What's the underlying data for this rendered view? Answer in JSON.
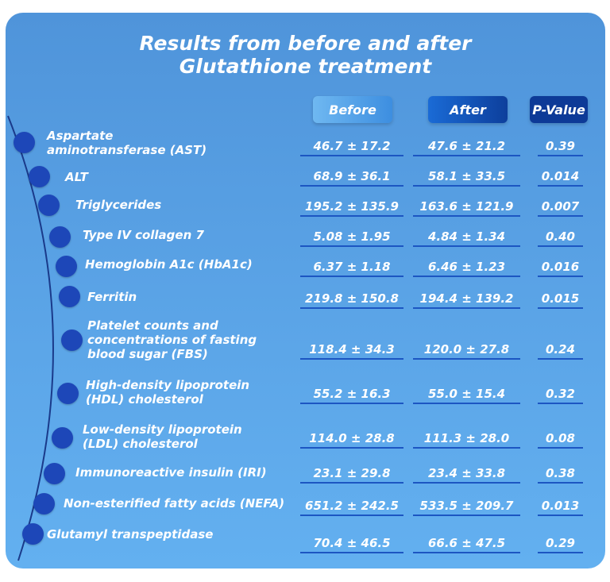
{
  "chart_data": {
    "type": "table",
    "title_lines": [
      "Results from before and after",
      "Glutathione treatment"
    ],
    "columns": [
      "Before",
      "After",
      "P-Value"
    ],
    "rows": [
      {
        "label": "Aspartate\naminotransferase (AST)",
        "before": "46.7 ± 17.2",
        "after": "47.6 ± 21.2",
        "p": "0.39"
      },
      {
        "label": "ALT",
        "before": "68.9 ± 36.1",
        "after": "58.1 ± 33.5",
        "p": "0.014"
      },
      {
        "label": "Triglycerides",
        "before": "195.2 ± 135.9",
        "after": "163.6 ± 121.9",
        "p": "0.007"
      },
      {
        "label": "Type IV collagen 7",
        "before": "5.08 ± 1.95",
        "after": "4.84 ± 1.34",
        "p": "0.40"
      },
      {
        "label": "Hemoglobin A1c (HbA1c)",
        "before": "6.37 ± 1.18",
        "after": "6.46 ± 1.23",
        "p": "0.016"
      },
      {
        "label": "Ferritin",
        "before": "219.8 ± 150.8",
        "after": "194.4 ± 139.2",
        "p": "0.015"
      },
      {
        "label": "Platelet counts and\nconcentrations of fasting\nblood sugar (FBS)",
        "before": "118.4 ± 34.3",
        "after": "120.0 ± 27.8",
        "p": "0.24"
      },
      {
        "label": "High-density lipoprotein\n(HDL) cholesterol",
        "before": "55.2 ± 16.3",
        "after": "55.0 ± 15.4",
        "p": "0.32"
      },
      {
        "label": "Low-density lipoprotein\n(LDL) cholesterol",
        "before": "114.0 ± 28.8",
        "after": "111.3 ± 28.0",
        "p": "0.08"
      },
      {
        "label": "Immunoreactive insulin (IRI)",
        "before": "23.1 ± 29.8",
        "after": "23.4 ± 33.8",
        "p": "0.38"
      },
      {
        "label": "Non-esterified fatty acids (NEFA)",
        "before": "651.2 ± 242.5",
        "after": "533.5 ± 209.7",
        "p": "0.013"
      },
      {
        "label": "Glutamyl transpeptidase",
        "before": "70.4 ± 46.5",
        "after": "66.6 ± 47.5",
        "p": "0.29"
      }
    ]
  },
  "colors": {
    "card": "#5aa3e6",
    "dot": "#1d47b8",
    "underline": "#1c56c2",
    "before_header": "#4a9be6",
    "after_header": "#0f4bb3",
    "p_header": "#0d3a97"
  }
}
